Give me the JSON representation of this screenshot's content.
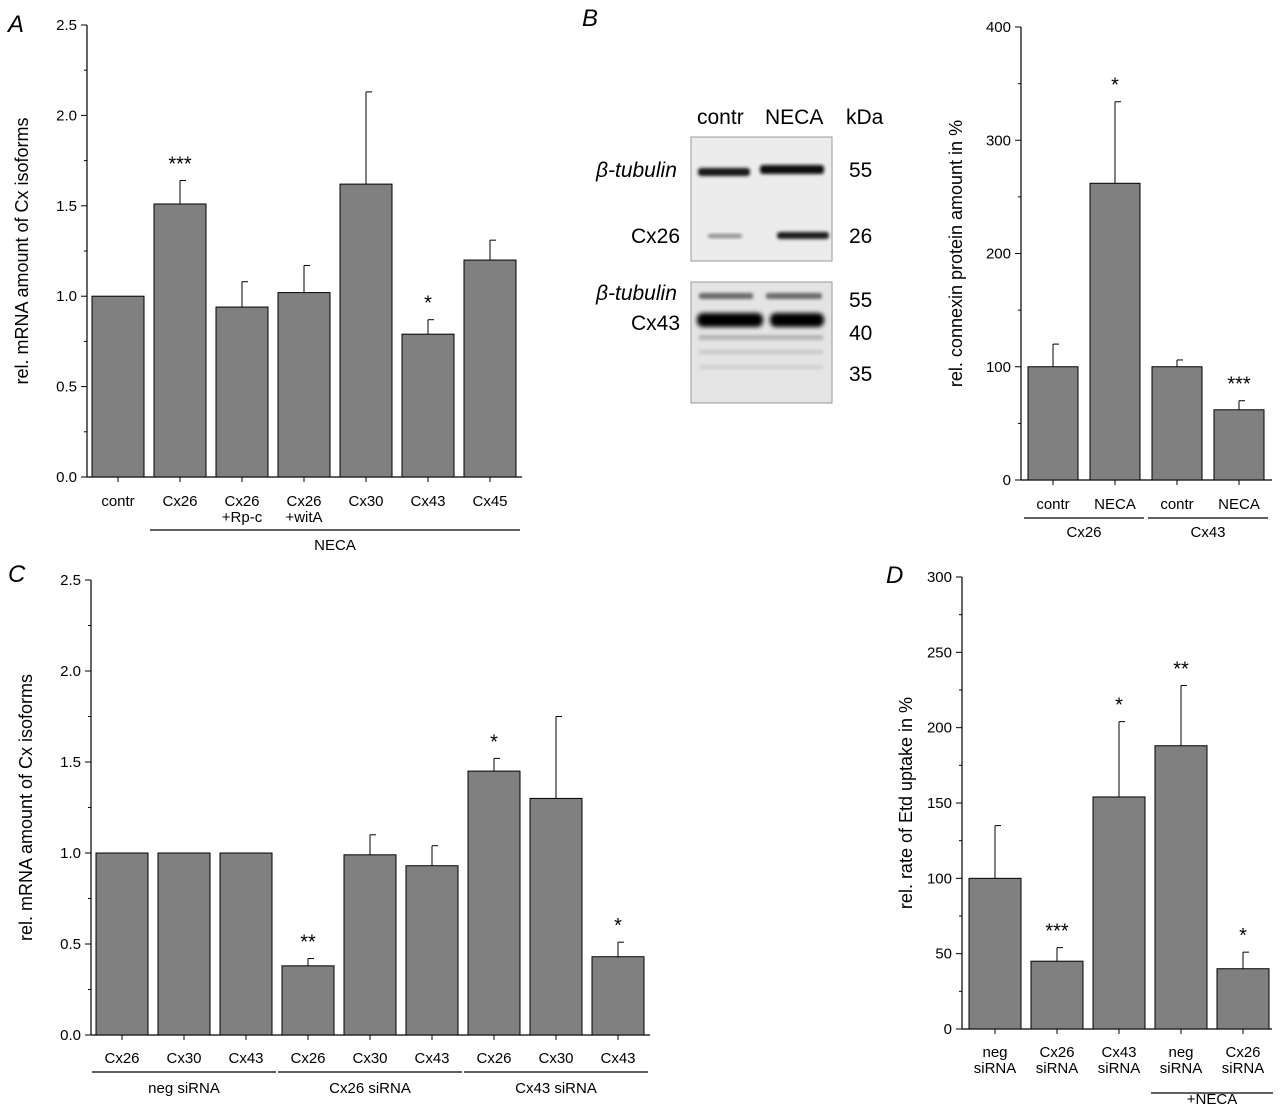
{
  "panels": {
    "A": "A",
    "B": "B",
    "C": "C",
    "D": "D"
  },
  "blot": {
    "lanes": [
      "contr",
      "NECA"
    ],
    "kda_label": "kDa",
    "upper": {
      "rows": [
        {
          "name": "β-tubulin",
          "kda": "55"
        },
        {
          "name": "Cx26",
          "kda": "26"
        }
      ]
    },
    "lower": {
      "names": [
        "β-tubulin",
        "Cx43"
      ],
      "kda": [
        "55",
        "40",
        "35"
      ]
    }
  },
  "chart_data": [
    {
      "id": "A",
      "type": "bar",
      "ylabel": "rel. mRNA amount of Cx isoforms",
      "ylim": [
        0,
        2.5
      ],
      "yticks": [
        "0.0",
        "0.5",
        "1.0",
        "1.5",
        "2.0",
        "2.5"
      ],
      "categories": [
        [
          "contr"
        ],
        [
          "Cx26"
        ],
        [
          "Cx26",
          "+Rp-c"
        ],
        [
          "Cx26",
          "+witA"
        ],
        [
          "Cx30"
        ],
        [
          "Cx43"
        ],
        [
          "Cx45"
        ]
      ],
      "values": [
        1.0,
        1.51,
        0.94,
        1.02,
        1.62,
        0.79,
        1.2
      ],
      "errors": [
        0,
        0.13,
        0.14,
        0.15,
        0.51,
        0.08,
        0.11
      ],
      "significance": [
        "",
        "***",
        "",
        "",
        "",
        "*",
        ""
      ],
      "groups": [
        {
          "label": "NECA",
          "from": 1,
          "to": 6
        }
      ],
      "bar_color": "#808080"
    },
    {
      "id": "B",
      "type": "bar",
      "ylabel": "rel. connexin protein amount in %",
      "ylim": [
        0,
        400
      ],
      "yticks": [
        "0",
        "100",
        "200",
        "300",
        "400"
      ],
      "categories": [
        [
          "contr"
        ],
        [
          "NECA"
        ],
        [
          "contr"
        ],
        [
          "NECA"
        ]
      ],
      "values": [
        100,
        262,
        100,
        62
      ],
      "errors": [
        20,
        72,
        6,
        8
      ],
      "significance": [
        "",
        "*",
        "",
        "***"
      ],
      "groups": [
        {
          "label": "Cx26",
          "from": 0,
          "to": 1
        },
        {
          "label": "Cx43",
          "from": 2,
          "to": 3
        }
      ],
      "bar_color": "#808080"
    },
    {
      "id": "C",
      "type": "bar",
      "ylabel": "rel. mRNA amount of Cx isoforms",
      "ylim": [
        0,
        2.5
      ],
      "yticks": [
        "0.0",
        "0.5",
        "1.0",
        "1.5",
        "2.0",
        "2.5"
      ],
      "categories": [
        [
          "Cx26"
        ],
        [
          "Cx30"
        ],
        [
          "Cx43"
        ],
        [
          "Cx26"
        ],
        [
          "Cx30"
        ],
        [
          "Cx43"
        ],
        [
          "Cx26"
        ],
        [
          "Cx30"
        ],
        [
          "Cx43"
        ]
      ],
      "values": [
        1.0,
        1.0,
        1.0,
        0.38,
        0.99,
        0.93,
        1.45,
        1.3,
        0.43
      ],
      "errors": [
        0,
        0,
        0,
        0.04,
        0.11,
        0.11,
        0.07,
        0.45,
        0.08
      ],
      "significance": [
        "",
        "",
        "",
        "**",
        "",
        "",
        "*",
        "",
        "*"
      ],
      "groups": [
        {
          "label": "neg siRNA",
          "from": 0,
          "to": 2
        },
        {
          "label": "Cx26 siRNA",
          "from": 3,
          "to": 5
        },
        {
          "label": "Cx43 siRNA",
          "from": 6,
          "to": 8
        }
      ],
      "bar_color": "#808080"
    },
    {
      "id": "D",
      "type": "bar",
      "ylabel": "rel. rate of Etd uptake in %",
      "ylim": [
        0,
        300
      ],
      "yticks": [
        "0",
        "50",
        "100",
        "150",
        "200",
        "250",
        "300"
      ],
      "categories": [
        [
          "neg",
          "siRNA"
        ],
        [
          "Cx26",
          "siRNA"
        ],
        [
          "Cx43",
          "siRNA"
        ],
        [
          "neg",
          "siRNA"
        ],
        [
          "Cx26",
          "siRNA"
        ]
      ],
      "values": [
        100,
        45,
        154,
        188,
        40
      ],
      "errors": [
        35,
        9,
        50,
        40,
        11
      ],
      "significance": [
        "",
        "***",
        "*",
        "**",
        "*"
      ],
      "groups": [
        {
          "label": "+NECA",
          "from": 3,
          "to": 4
        }
      ],
      "bar_color": "#808080"
    }
  ]
}
